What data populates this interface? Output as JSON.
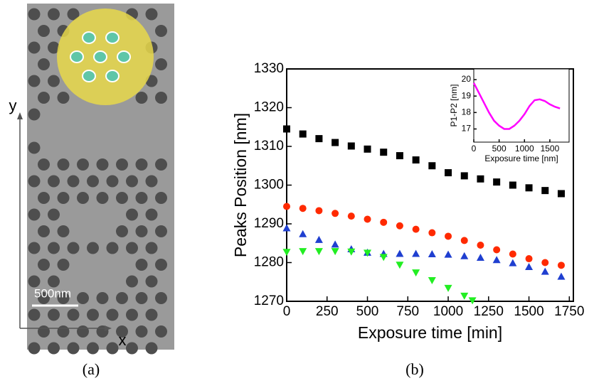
{
  "panel_a": {
    "y_axis": "y",
    "x_axis": "x",
    "scale_bar": "500nm"
  },
  "captions": [
    "(a)",
    "(b)"
  ],
  "chart_data": [
    {
      "type": "scatter",
      "xlabel": "Exposure time [min]",
      "ylabel": "Peaks Position [nm]",
      "xlim": [
        0,
        1775
      ],
      "ylim": [
        1270,
        1330
      ],
      "xticks": [
        0,
        250,
        500,
        750,
        1000,
        1250,
        1500,
        1750
      ],
      "yticks": [
        1270,
        1280,
        1290,
        1300,
        1310,
        1320,
        1330
      ],
      "series": [
        {
          "color": "#000000",
          "marker": "square",
          "x": [
            0,
            100,
            200,
            300,
            400,
            500,
            600,
            700,
            800,
            900,
            1000,
            1100,
            1200,
            1300,
            1400,
            1500,
            1600,
            1700
          ],
          "values": [
            1314.5,
            1313.2,
            1312,
            1311,
            1310.1,
            1309.3,
            1308.5,
            1307.6,
            1306.5,
            1305,
            1303.2,
            1302.4,
            1301.6,
            1300.8,
            1300,
            1299.3,
            1298.6,
            1297.8
          ]
        },
        {
          "color": "#ff2a00",
          "marker": "circle",
          "x": [
            0,
            100,
            200,
            300,
            400,
            500,
            600,
            700,
            800,
            900,
            1000,
            1100,
            1200,
            1300,
            1400,
            1500,
            1600,
            1700
          ],
          "values": [
            1294.5,
            1294,
            1293.4,
            1292.7,
            1292,
            1291.2,
            1290.4,
            1289.5,
            1288.6,
            1287.7,
            1286.8,
            1285.7,
            1284.5,
            1283.3,
            1282.2,
            1281,
            1280,
            1279.3
          ]
        },
        {
          "color": "#1f3fd0",
          "marker": "triangle-up",
          "x": [
            0,
            100,
            200,
            300,
            400,
            500,
            600,
            700,
            800,
            900,
            1000,
            1100,
            1200,
            1300,
            1400,
            1500,
            1600,
            1700
          ],
          "values": [
            1288.8,
            1287.3,
            1285.8,
            1284.6,
            1283.4,
            1282.5,
            1282.2,
            1282.2,
            1282.2,
            1282.1,
            1282,
            1281.6,
            1281.2,
            1280.6,
            1279.8,
            1278.8,
            1277.6,
            1276.3
          ]
        },
        {
          "color": "#22ee22",
          "marker": "triangle-down",
          "x": [
            0,
            100,
            200,
            300,
            400,
            500,
            600,
            700,
            800,
            900,
            1000,
            1100,
            1150
          ],
          "values": [
            1282.8,
            1283,
            1283,
            1283,
            1282.9,
            1282.6,
            1281.5,
            1279.5,
            1277.5,
            1275.5,
            1273.5,
            1271.5,
            1270.3
          ]
        }
      ]
    },
    {
      "type": "line",
      "xlabel": "Exposure time [nm]",
      "ylabel": "P1-P2 [nm]",
      "xlim": [
        0,
        1880
      ],
      "ylim": [
        16.2,
        20.65
      ],
      "xticks": [
        0,
        500,
        1000,
        1500
      ],
      "yticks": [
        17,
        18,
        19,
        20
      ],
      "series": [
        {
          "color": "#ff00ff",
          "marker": "circle",
          "x": [
            0,
            100,
            200,
            300,
            400,
            500,
            600,
            700,
            800,
            900,
            1000,
            1100,
            1200,
            1300,
            1400,
            1500,
            1600,
            1700
          ],
          "values": [
            19.8,
            19.2,
            18.6,
            18.0,
            17.5,
            17.2,
            17.0,
            17.0,
            17.2,
            17.5,
            17.9,
            18.4,
            18.75,
            18.8,
            18.7,
            18.5,
            18.35,
            18.25
          ]
        }
      ]
    }
  ]
}
